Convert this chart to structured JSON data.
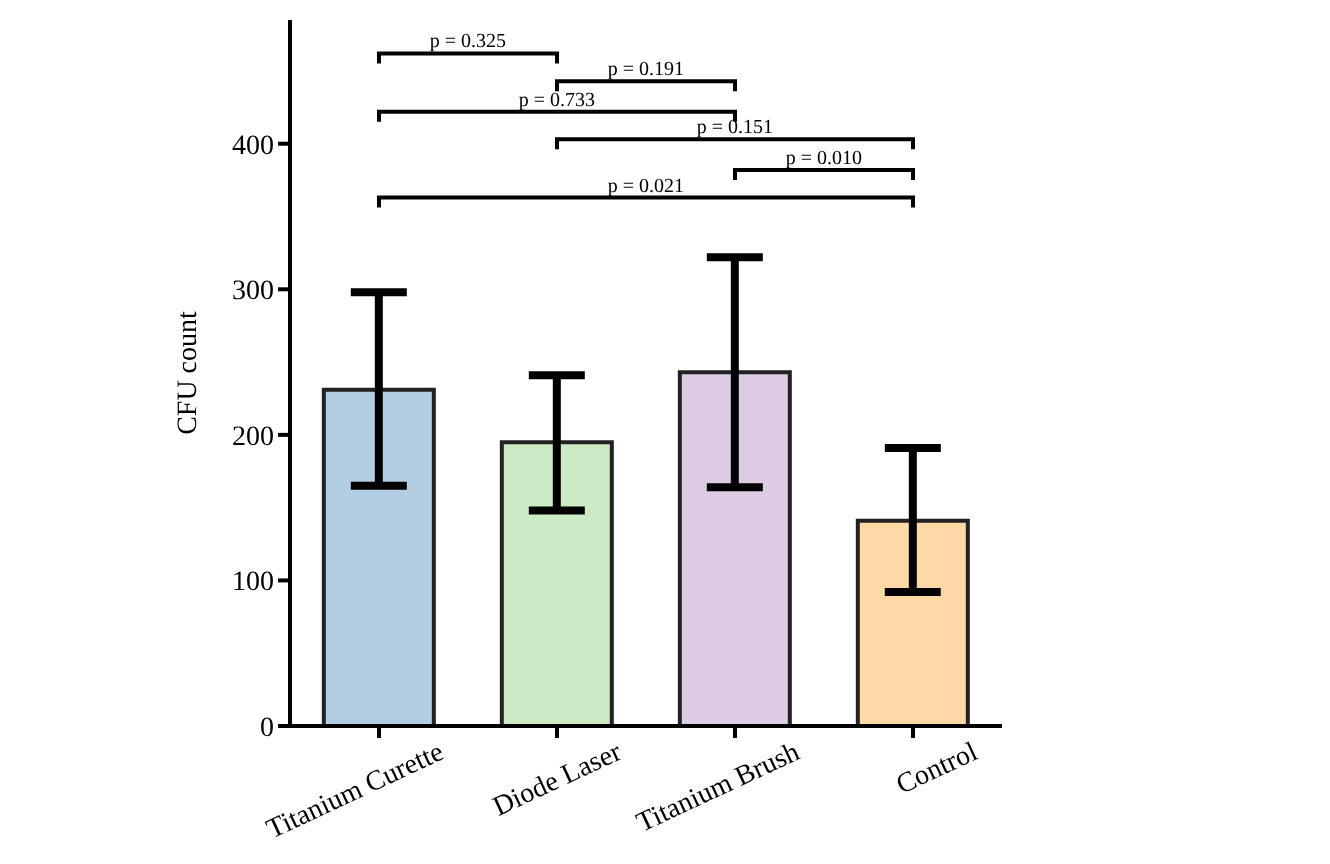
{
  "chart_data": {
    "type": "bar",
    "ylabel": "CFU count",
    "categories": [
      "Titanium Curette",
      "Diode Laser",
      "Titanium Brush",
      "Control"
    ],
    "values": [
      231,
      195,
      243,
      141
    ],
    "colors": [
      "#b3cde3",
      "#ccebc5",
      "#decbe4",
      "#fed9a6"
    ],
    "errors": [
      [
        165,
        298
      ],
      [
        148,
        241
      ],
      [
        164,
        322
      ],
      [
        92,
        191
      ]
    ],
    "ylim": [
      0,
      485
    ],
    "yticks": [
      0,
      100,
      200,
      300,
      400
    ],
    "grid": false,
    "legend": false,
    "annotations": [
      "p = 0.325",
      "p = 0.191",
      "p = 0.733",
      "p = 0.151",
      "p = 0.010",
      "p = 0.021"
    ]
  }
}
